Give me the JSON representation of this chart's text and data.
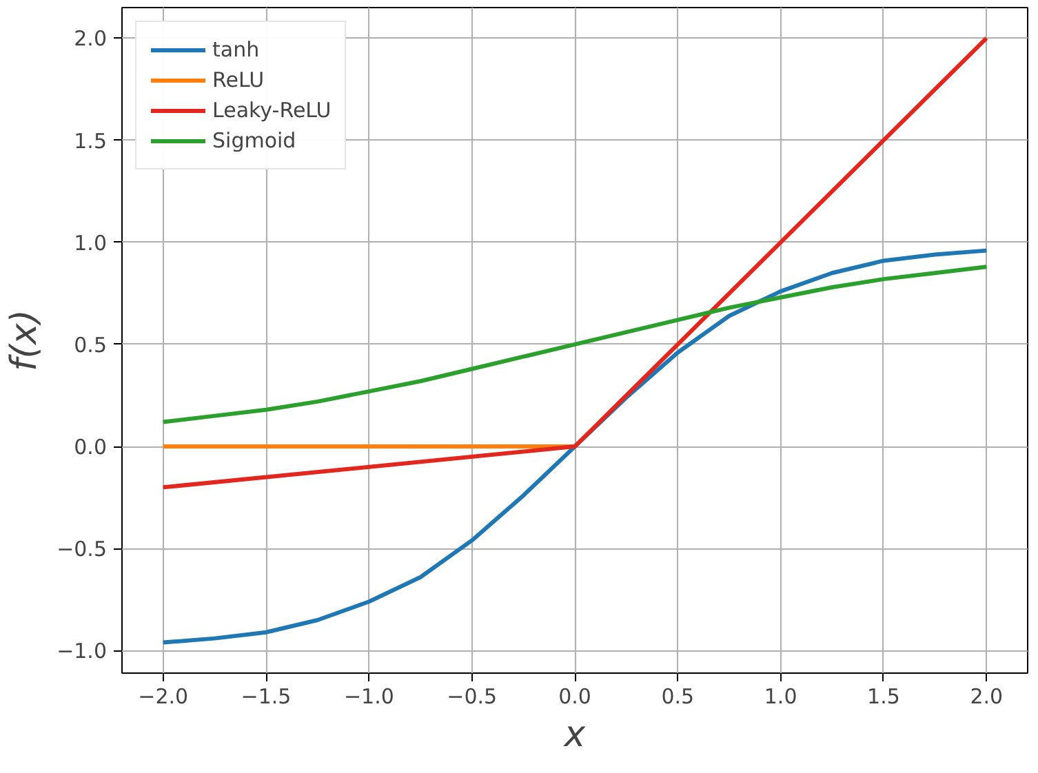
{
  "chart_data": {
    "type": "line",
    "xlabel": "x",
    "ylabel": "f(x)",
    "xlim": [
      -2.2,
      2.2
    ],
    "ylim": [
      -1.11,
      2.15
    ],
    "xticks": [
      {
        "value": -2.0,
        "label": "−2.0"
      },
      {
        "value": -1.5,
        "label": "−1.5"
      },
      {
        "value": -1.0,
        "label": "−1.0"
      },
      {
        "value": -0.5,
        "label": "−0.5"
      },
      {
        "value": 0.0,
        "label": "0.0"
      },
      {
        "value": 0.5,
        "label": "0.5"
      },
      {
        "value": 1.0,
        "label": "1.0"
      },
      {
        "value": 1.5,
        "label": "1.5"
      },
      {
        "value": 2.0,
        "label": "2.0"
      }
    ],
    "yticks": [
      {
        "value": -1.0,
        "label": "−1.0"
      },
      {
        "value": -0.5,
        "label": "−0.5"
      },
      {
        "value": 0.0,
        "label": "0.0"
      },
      {
        "value": 0.5,
        "label": "0.5"
      },
      {
        "value": 1.0,
        "label": "1.0"
      },
      {
        "value": 1.5,
        "label": "1.5"
      },
      {
        "value": 2.0,
        "label": "2.0"
      }
    ],
    "grid": true,
    "legend": "top left",
    "marker": "none",
    "line_style": "solid",
    "series": [
      {
        "name": "tanh",
        "color": "#1f77b4",
        "x": [
          -2,
          -1.75,
          -1.5,
          -1.25,
          -1,
          -0.75,
          -0.5,
          -0.25,
          0,
          0.25,
          0.5,
          0.75,
          1,
          1.25,
          1.5,
          1.75,
          2
        ],
        "values": [
          -0.96,
          -0.94,
          -0.91,
          -0.85,
          -0.76,
          -0.64,
          -0.46,
          -0.24,
          0,
          0.24,
          0.46,
          0.64,
          0.76,
          0.85,
          0.91,
          0.94,
          0.96
        ]
      },
      {
        "name": "ReLU",
        "color": "#ff7f0e",
        "x": [
          -2,
          0
        ],
        "values": [
          0,
          0
        ]
      },
      {
        "name": "Leaky-ReLU",
        "color": "#e3261e",
        "x": [
          -2,
          0,
          2
        ],
        "values": [
          -0.2,
          0,
          2
        ]
      },
      {
        "name": "Sigmoid",
        "color": "#2ca02c",
        "x": [
          -2,
          -1.75,
          -1.5,
          -1.25,
          -1,
          -0.75,
          -0.5,
          -0.25,
          0,
          0.25,
          0.5,
          0.75,
          1,
          1.25,
          1.5,
          1.75,
          2
        ],
        "values": [
          0.12,
          0.15,
          0.18,
          0.22,
          0.27,
          0.32,
          0.38,
          0.44,
          0.5,
          0.56,
          0.62,
          0.68,
          0.73,
          0.78,
          0.82,
          0.85,
          0.88
        ]
      }
    ]
  }
}
